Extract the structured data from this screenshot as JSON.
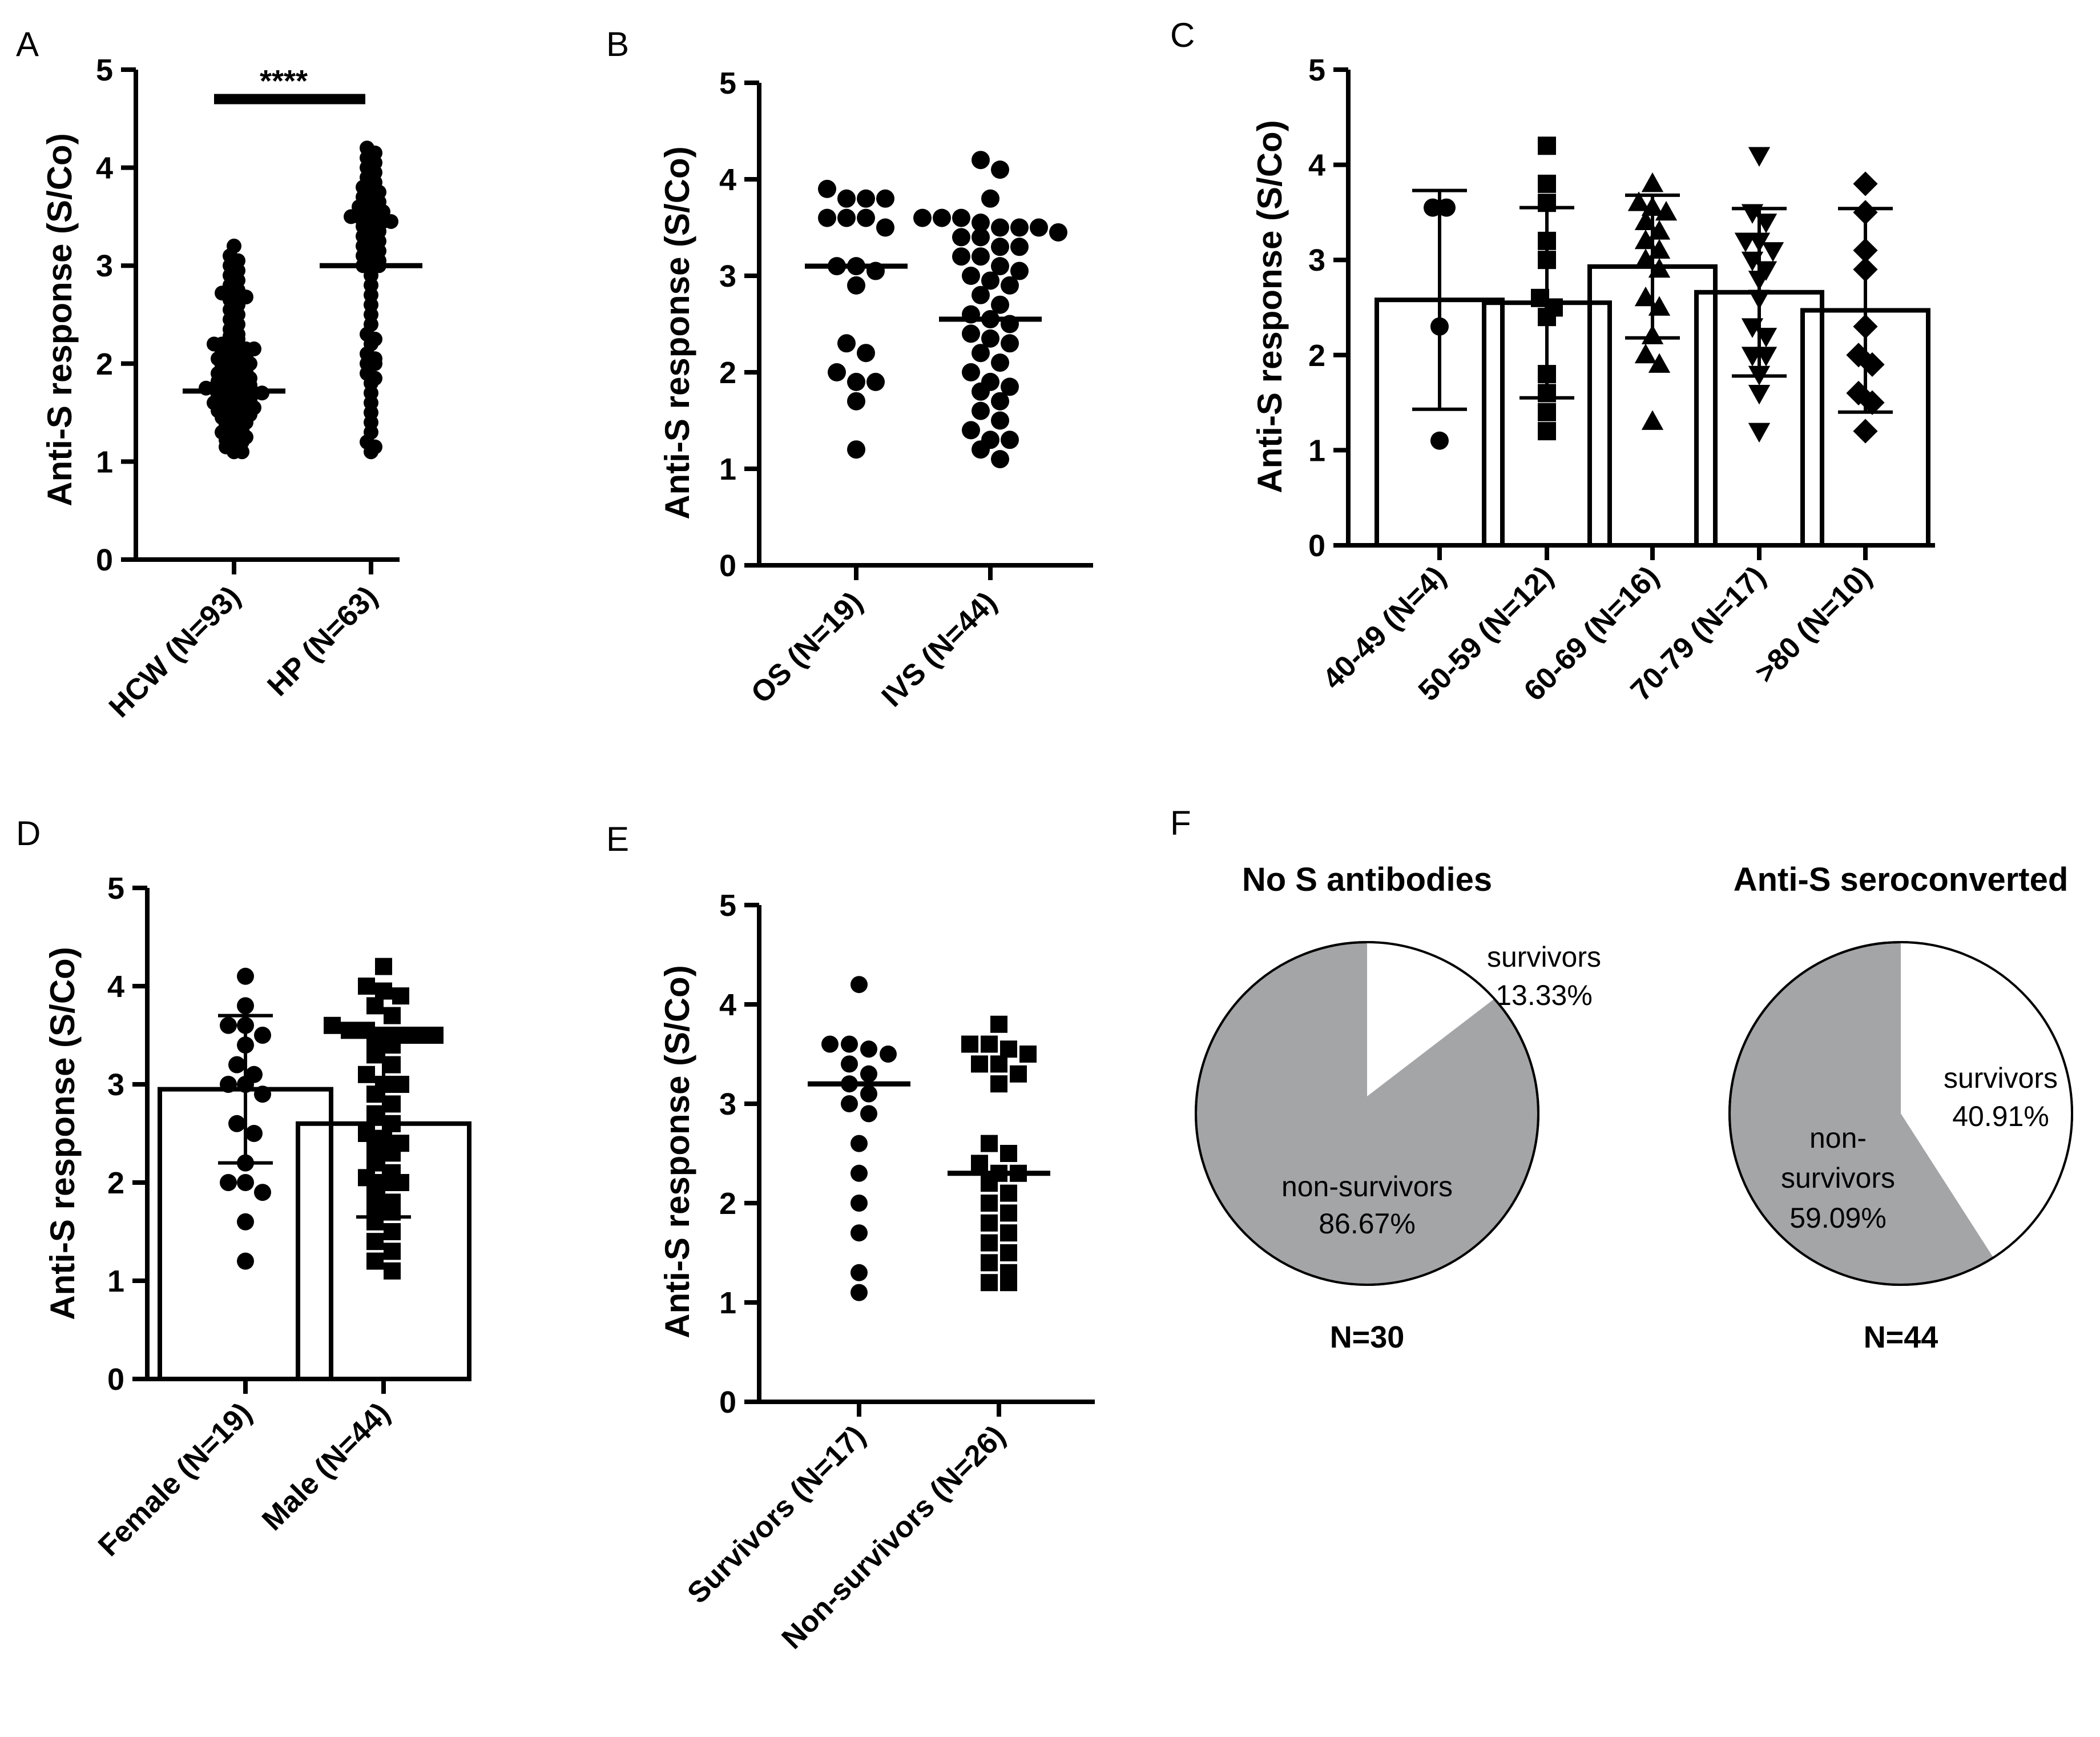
{
  "chart_data": [
    {
      "panel": "A",
      "type": "scatter",
      "ylabel": "Anti-S response  (S/Co)",
      "ylim": [
        0,
        5
      ],
      "yticks": [
        0,
        1,
        2,
        3,
        4,
        5
      ],
      "categories": [
        "HCW (N=93)",
        "HP (N=63)"
      ],
      "medians": [
        1.72,
        3.0
      ],
      "significance": "****",
      "marker": "circle",
      "points": [
        [
          1.1,
          1.1,
          1.15,
          1.2,
          1.2,
          1.22,
          1.25,
          1.28,
          1.3,
          1.3,
          1.32,
          1.35,
          1.38,
          1.4,
          1.4,
          1.42,
          1.45,
          1.48,
          1.5,
          1.5,
          1.5,
          1.52,
          1.55,
          1.55,
          1.58,
          1.6,
          1.6,
          1.6,
          1.62,
          1.62,
          1.65,
          1.65,
          1.68,
          1.7,
          1.7,
          1.7,
          1.72,
          1.72,
          1.72,
          1.75,
          1.75,
          1.78,
          1.8,
          1.8,
          1.8,
          1.82,
          1.85,
          1.85,
          1.88,
          1.9,
          1.9,
          1.92,
          1.95,
          1.95,
          1.98,
          2.0,
          2.0,
          2.02,
          2.05,
          2.05,
          2.08,
          2.1,
          2.1,
          2.12,
          2.15,
          2.15,
          2.18,
          2.2,
          2.2,
          2.2,
          2.25,
          2.28,
          2.3,
          2.35,
          2.4,
          2.45,
          2.5,
          2.55,
          2.6,
          2.65,
          2.68,
          2.7,
          2.7,
          2.72,
          2.75,
          2.8,
          2.85,
          2.9,
          2.95,
          3.0,
          3.05,
          3.1,
          3.2
        ],
        [
          1.1,
          1.15,
          1.2,
          1.3,
          1.4,
          1.5,
          1.6,
          1.7,
          1.8,
          1.85,
          1.9,
          2.0,
          2.0,
          2.05,
          2.1,
          2.2,
          2.25,
          2.3,
          2.4,
          2.5,
          2.6,
          2.7,
          2.8,
          2.9,
          3.0,
          3.0,
          3.0,
          3.05,
          3.1,
          3.1,
          3.15,
          3.2,
          3.2,
          3.25,
          3.3,
          3.3,
          3.35,
          3.4,
          3.4,
          3.45,
          3.45,
          3.5,
          3.5,
          3.5,
          3.5,
          3.55,
          3.55,
          3.6,
          3.6,
          3.65,
          3.7,
          3.7,
          3.75,
          3.8,
          3.8,
          3.85,
          3.9,
          3.95,
          4.0,
          4.05,
          4.1,
          4.15,
          4.2
        ]
      ]
    },
    {
      "panel": "B",
      "type": "scatter",
      "ylabel": "Anti-S response  (S/Co)",
      "ylim": [
        0,
        5
      ],
      "yticks": [
        0,
        1,
        2,
        3,
        4,
        5
      ],
      "categories": [
        "OS (N=19)",
        "IVS (N=44)"
      ],
      "medians": [
        3.1,
        2.55
      ],
      "marker": "circle",
      "points": [
        [
          1.2,
          1.7,
          1.9,
          1.9,
          2.0,
          2.2,
          2.3,
          2.9,
          3.05,
          3.1,
          3.1,
          3.5,
          3.6,
          3.6,
          3.6,
          3.8,
          3.8,
          3.8,
          3.9
        ],
        [
          1.1,
          1.2,
          1.3,
          1.3,
          1.4,
          1.5,
          1.6,
          1.7,
          1.8,
          1.85,
          1.9,
          2.0,
          2.1,
          2.2,
          2.3,
          2.35,
          2.4,
          2.5,
          2.55,
          2.6,
          2.7,
          2.8,
          2.9,
          2.95,
          3.0,
          3.05,
          3.1,
          3.2,
          3.2,
          3.3,
          3.3,
          3.4,
          3.4,
          3.45,
          3.5,
          3.5,
          3.5,
          3.55,
          3.6,
          3.6,
          3.6,
          3.8,
          4.1,
          4.2
        ]
      ]
    },
    {
      "panel": "C",
      "type": "bar",
      "ylabel": "Anti-S response  (S/Co)",
      "ylim": [
        0,
        5
      ],
      "yticks": [
        0,
        1,
        2,
        3,
        4,
        5
      ],
      "categories": [
        "40-49 (N=4)",
        "50-59 (N=12)",
        "60-69 (N=16)",
        "70-79 (N=17)",
        ">80 (N=10)"
      ],
      "values": [
        2.58,
        2.55,
        2.93,
        2.66,
        2.47
      ],
      "sd": [
        1.15,
        1.0,
        0.75,
        0.88,
        1.07
      ],
      "markers": [
        "circle",
        "square",
        "triangle-up",
        "triangle-down",
        "diamond"
      ],
      "points": [
        [
          1.1,
          2.3,
          3.55,
          3.55
        ],
        [
          1.2,
          1.4,
          1.6,
          1.8,
          2.4,
          2.5,
          2.6,
          3.0,
          3.2,
          3.6,
          3.8,
          4.2
        ],
        [
          1.3,
          1.9,
          2.0,
          2.2,
          2.5,
          2.6,
          2.9,
          3.0,
          3.1,
          3.2,
          3.3,
          3.4,
          3.5,
          3.55,
          3.6,
          3.8
        ],
        [
          1.2,
          1.6,
          1.8,
          2.0,
          2.0,
          2.2,
          2.3,
          2.6,
          2.8,
          2.9,
          3.0,
          3.1,
          3.2,
          3.2,
          3.4,
          3.5,
          4.1
        ],
        [
          1.2,
          1.5,
          1.6,
          1.9,
          2.0,
          2.3,
          2.9,
          3.1,
          3.5,
          3.8
        ]
      ]
    },
    {
      "panel": "D",
      "type": "bar",
      "ylabel": "Anti-S response  (S/Co)",
      "ylim": [
        0,
        5
      ],
      "yticks": [
        0,
        1,
        2,
        3,
        4,
        5
      ],
      "categories": [
        "Female (N=19)",
        "Male (N=44)"
      ],
      "values": [
        2.95,
        2.6
      ],
      "sd": [
        0.75,
        0.95
      ],
      "markers": [
        "circle",
        "square"
      ],
      "points": [
        [
          1.2,
          1.6,
          1.9,
          2.0,
          2.0,
          2.2,
          2.5,
          2.6,
          2.9,
          3.0,
          3.0,
          3.1,
          3.2,
          3.4,
          3.5,
          3.6,
          3.6,
          3.8,
          4.1
        ],
        [
          1.1,
          1.2,
          1.3,
          1.4,
          1.5,
          1.6,
          1.7,
          1.75,
          1.8,
          1.9,
          2.0,
          2.0,
          2.05,
          2.1,
          2.2,
          2.3,
          2.35,
          2.4,
          2.45,
          2.5,
          2.6,
          2.7,
          2.8,
          2.9,
          3.0,
          3.0,
          3.1,
          3.2,
          3.3,
          3.4,
          3.45,
          3.5,
          3.5,
          3.5,
          3.5,
          3.55,
          3.55,
          3.6,
          3.7,
          3.8,
          3.9,
          3.95,
          4.0,
          4.2
        ]
      ]
    },
    {
      "panel": "E",
      "type": "scatter",
      "ylabel": "Anti-S response  (S/Co)",
      "ylim": [
        0,
        5
      ],
      "yticks": [
        0,
        1,
        2,
        3,
        4,
        5
      ],
      "categories": [
        "Survivors (N=17)",
        "Non-survivors (N=26)"
      ],
      "medians": [
        3.2,
        2.3
      ],
      "markers": [
        "circle",
        "square"
      ],
      "points": [
        [
          1.1,
          1.3,
          1.7,
          2.0,
          2.3,
          2.6,
          2.9,
          3.0,
          3.1,
          3.2,
          3.3,
          3.4,
          3.5,
          3.55,
          3.6,
          3.6,
          4.2
        ],
        [
          1.2,
          1.2,
          1.3,
          1.4,
          1.5,
          1.6,
          1.7,
          1.8,
          1.9,
          2.0,
          2.1,
          2.2,
          2.3,
          2.3,
          2.4,
          2.5,
          2.6,
          3.2,
          3.3,
          3.4,
          3.4,
          3.5,
          3.55,
          3.6,
          3.6,
          3.8
        ]
      ]
    },
    {
      "panel": "F",
      "type": "pie",
      "pies": [
        {
          "title": "No S antibodies",
          "n_label": "N=30",
          "slices": [
            {
              "label": "survivors",
              "pct": "13.33%",
              "value": 13.33,
              "color": "#ffffff"
            },
            {
              "label": "non-survivors",
              "pct": "86.67%",
              "value": 86.67,
              "color": "#a4a5a7"
            }
          ]
        },
        {
          "title": "Anti-S seroconverted",
          "n_label": "N=44",
          "slices": [
            {
              "label": "survivors",
              "pct": "40.91%",
              "value": 40.91,
              "color": "#ffffff"
            },
            {
              "label": "non-survivors",
              "pct": "59.09%",
              "value": 59.09,
              "color": "#a4a5a7",
              "label_lines": [
                "non-",
                "survivors"
              ]
            }
          ]
        }
      ]
    }
  ]
}
